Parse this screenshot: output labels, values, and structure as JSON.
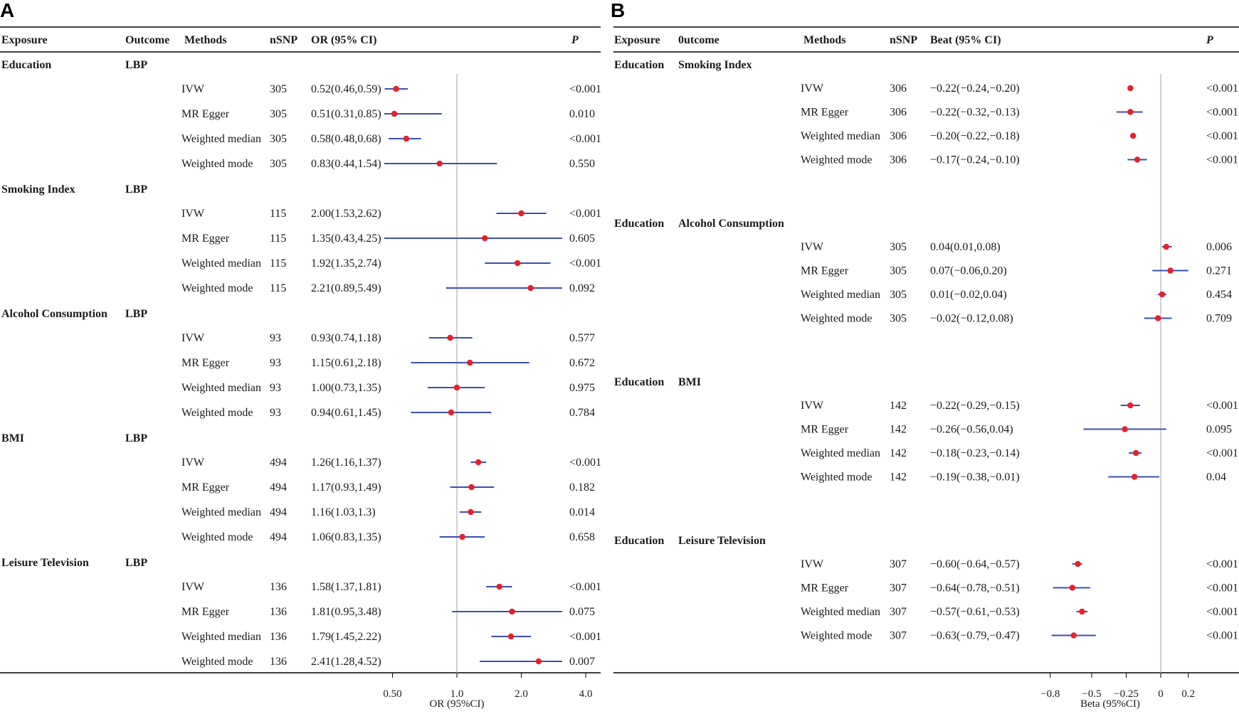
{
  "panels": [
    {
      "letter": "A",
      "headers": {
        "exposure": "Exposure",
        "outcome": "Outcome",
        "methods": "Methods",
        "nsnp": "nSNP",
        "estimate": "OR (95% CI)",
        "p": "P"
      },
      "axis": {
        "label": "OR (95%CI)",
        "ticks": [
          "0.50",
          "1.0",
          "2.0",
          "4.0"
        ]
      }
    },
    {
      "letter": "B",
      "headers": {
        "exposure": "Exposure",
        "outcome": "0utcome",
        "methods": "Methods",
        "nsnp": "nSNP",
        "estimate": "Beat (95% CI)",
        "p": "P"
      },
      "axis": {
        "label": "Beta (95%CI)",
        "ticks": [
          "−0.8",
          "−0.5",
          "−0.25",
          "0",
          "0.2"
        ]
      }
    }
  ],
  "chart_data": [
    {
      "type": "forest",
      "panel": "A",
      "scale": "log",
      "reference": 1.0,
      "xlabel": "OR (95%CI)",
      "xticks": [
        0.5,
        1.0,
        2.0,
        4.0
      ],
      "groups": [
        {
          "exposure": "Education",
          "outcome": "LBP",
          "rows": [
            {
              "method": "IVW",
              "nsnp": "305",
              "text": "0.52(0.46,0.59)",
              "p": "<0.001",
              "est": 0.52,
              "lo": 0.46,
              "hi": 0.59
            },
            {
              "method": "MR Egger",
              "nsnp": "305",
              "text": "0.51(0.31,0.85)",
              "p": "0.010",
              "est": 0.51,
              "lo": 0.31,
              "hi": 0.85
            },
            {
              "method": "Weighted median",
              "nsnp": "305",
              "text": "0.58(0.48,0.68)",
              "p": "<0.001",
              "est": 0.58,
              "lo": 0.48,
              "hi": 0.68
            },
            {
              "method": "Weighted mode",
              "nsnp": "305",
              "text": "0.83(0.44,1.54)",
              "p": "0.550",
              "est": 0.83,
              "lo": 0.44,
              "hi": 1.54
            }
          ]
        },
        {
          "exposure": "Smoking Index",
          "outcome": "LBP",
          "rows": [
            {
              "method": "IVW",
              "nsnp": "115",
              "text": "2.00(1.53,2.62)",
              "p": "<0.001",
              "est": 2.0,
              "lo": 1.53,
              "hi": 2.62
            },
            {
              "method": "MR Egger",
              "nsnp": "115",
              "text": "1.35(0.43,4.25)",
              "p": "0.605",
              "est": 1.35,
              "lo": 0.43,
              "hi": 4.25
            },
            {
              "method": "Weighted median",
              "nsnp": "115",
              "text": "1.92(1.35,2.74)",
              "p": "<0.001",
              "est": 1.92,
              "lo": 1.35,
              "hi": 2.74
            },
            {
              "method": "Weighted mode",
              "nsnp": "115",
              "text": "2.21(0.89,5.49)",
              "p": "0.092",
              "est": 2.21,
              "lo": 0.89,
              "hi": 5.49
            }
          ]
        },
        {
          "exposure": "Alcohol Consumption",
          "outcome": "LBP",
          "rows": [
            {
              "method": "IVW",
              "nsnp": "93",
              "text": "0.93(0.74,1.18)",
              "p": "0.577",
              "est": 0.93,
              "lo": 0.74,
              "hi": 1.18
            },
            {
              "method": "MR Egger",
              "nsnp": "93",
              "text": "1.15(0.61,2.18)",
              "p": "0.672",
              "est": 1.15,
              "lo": 0.61,
              "hi": 2.18
            },
            {
              "method": "Weighted median",
              "nsnp": "93",
              "text": "1.00(0.73,1.35)",
              "p": "0.975",
              "est": 1.0,
              "lo": 0.73,
              "hi": 1.35
            },
            {
              "method": "Weighted mode",
              "nsnp": "93",
              "text": "0.94(0.61,1.45)",
              "p": "0.784",
              "est": 0.94,
              "lo": 0.61,
              "hi": 1.45
            }
          ]
        },
        {
          "exposure": "BMI",
          "outcome": "LBP",
          "rows": [
            {
              "method": "IVW",
              "nsnp": "494",
              "text": "1.26(1.16,1.37)",
              "p": "<0.001",
              "est": 1.26,
              "lo": 1.16,
              "hi": 1.37
            },
            {
              "method": "MR Egger",
              "nsnp": "494",
              "text": "1.17(0.93,1.49)",
              "p": "0.182",
              "est": 1.17,
              "lo": 0.93,
              "hi": 1.49
            },
            {
              "method": "Weighted median",
              "nsnp": "494",
              "text": "1.16(1.03,1.3)",
              "p": "0.014",
              "est": 1.16,
              "lo": 1.03,
              "hi": 1.3
            },
            {
              "method": "Weighted mode",
              "nsnp": "494",
              "text": "1.06(0.83,1.35)",
              "p": "0.658",
              "est": 1.06,
              "lo": 0.83,
              "hi": 1.35
            }
          ]
        },
        {
          "exposure": "Leisure Television",
          "outcome": "LBP",
          "rows": [
            {
              "method": "IVW",
              "nsnp": "136",
              "text": "1.58(1.37,1.81)",
              "p": "<0.001",
              "est": 1.58,
              "lo": 1.37,
              "hi": 1.81
            },
            {
              "method": "MR Egger",
              "nsnp": "136",
              "text": "1.81(0.95,3.48)",
              "p": "0.075",
              "est": 1.81,
              "lo": 0.95,
              "hi": 3.48
            },
            {
              "method": "Weighted median",
              "nsnp": "136",
              "text": "1.79(1.45,2.22)",
              "p": "<0.001",
              "est": 1.79,
              "lo": 1.45,
              "hi": 2.22
            },
            {
              "method": "Weighted mode",
              "nsnp": "136",
              "text": "2.41(1.28,4.52)",
              "p": "0.007",
              "est": 2.41,
              "lo": 1.28,
              "hi": 4.52
            }
          ]
        }
      ]
    },
    {
      "type": "forest",
      "panel": "B",
      "scale": "linear",
      "reference": 0,
      "xlabel": "Beta (95%CI)",
      "xticks": [
        -0.8,
        -0.5,
        -0.25,
        0,
        0.2
      ],
      "groups": [
        {
          "exposure": "Education",
          "outcome": "Smoking Index",
          "rows": [
            {
              "method": "IVW",
              "nsnp": "306",
              "text": "−0.22(−0.24,−0.20)",
              "p": "<0.001",
              "est": -0.22,
              "lo": -0.24,
              "hi": -0.2
            },
            {
              "method": "MR Egger",
              "nsnp": "306",
              "text": "−0.22(−0.32,−0.13)",
              "p": "<0.001",
              "est": -0.22,
              "lo": -0.32,
              "hi": -0.13
            },
            {
              "method": "Weighted median",
              "nsnp": "306",
              "text": "−0.20(−0.22,−0.18)",
              "p": "<0.001",
              "est": -0.2,
              "lo": -0.22,
              "hi": -0.18
            },
            {
              "method": "Weighted mode",
              "nsnp": "306",
              "text": "−0.17(−0.24,−0.10)",
              "p": "<0.001",
              "est": -0.17,
              "lo": -0.24,
              "hi": -0.1
            }
          ]
        },
        {
          "exposure": "Education",
          "outcome": "Alcohol Consumption",
          "rows": [
            {
              "method": "IVW",
              "nsnp": "305",
              "text": "0.04(0.01,0.08)",
              "p": "0.006",
              "est": 0.04,
              "lo": 0.01,
              "hi": 0.08
            },
            {
              "method": "MR Egger",
              "nsnp": "305",
              "text": "0.07(−0.06,0.20)",
              "p": "0.271",
              "est": 0.07,
              "lo": -0.06,
              "hi": 0.2
            },
            {
              "method": "Weighted median",
              "nsnp": "305",
              "text": "0.01(−0.02,0.04)",
              "p": "0.454",
              "est": 0.01,
              "lo": -0.02,
              "hi": 0.04
            },
            {
              "method": "Weighted mode",
              "nsnp": "305",
              "text": "−0.02(−0.12,0.08)",
              "p": "0.709",
              "est": -0.02,
              "lo": -0.12,
              "hi": 0.08
            }
          ]
        },
        {
          "exposure": "Education",
          "outcome": "BMI",
          "rows": [
            {
              "method": "IVW",
              "nsnp": "142",
              "text": "−0.22(−0.29,−0.15)",
              "p": "<0.001",
              "est": -0.22,
              "lo": -0.29,
              "hi": -0.15
            },
            {
              "method": "MR Egger",
              "nsnp": "142",
              "text": "−0.26(−0.56,0.04)",
              "p": "0.095",
              "est": -0.26,
              "lo": -0.56,
              "hi": 0.04
            },
            {
              "method": "Weighted median",
              "nsnp": "142",
              "text": "−0.18(−0.23,−0.14)",
              "p": "<0.001",
              "est": -0.18,
              "lo": -0.23,
              "hi": -0.14
            },
            {
              "method": "Weighted mode",
              "nsnp": "142",
              "text": "−0.19(−0.38,−0.01)",
              "p": "0.04",
              "est": -0.19,
              "lo": -0.38,
              "hi": -0.01
            }
          ]
        },
        {
          "exposure": "Education",
          "outcome": "Leisure Television",
          "rows": [
            {
              "method": "IVW",
              "nsnp": "307",
              "text": "−0.60(−0.64,−0.57)",
              "p": "<0.001",
              "est": -0.6,
              "lo": -0.64,
              "hi": -0.57
            },
            {
              "method": "MR Egger",
              "nsnp": "307",
              "text": "−0.64(−0.78,−0.51)",
              "p": "<0.001",
              "est": -0.64,
              "lo": -0.78,
              "hi": -0.51
            },
            {
              "method": "Weighted median",
              "nsnp": "307",
              "text": "−0.57(−0.61,−0.53)",
              "p": "<0.001",
              "est": -0.57,
              "lo": -0.61,
              "hi": -0.53
            },
            {
              "method": "Weighted mode",
              "nsnp": "307",
              "text": "−0.63(−0.79,−0.47)",
              "p": "<0.001",
              "est": -0.63,
              "lo": -0.79,
              "hi": -0.47
            }
          ]
        }
      ]
    }
  ]
}
